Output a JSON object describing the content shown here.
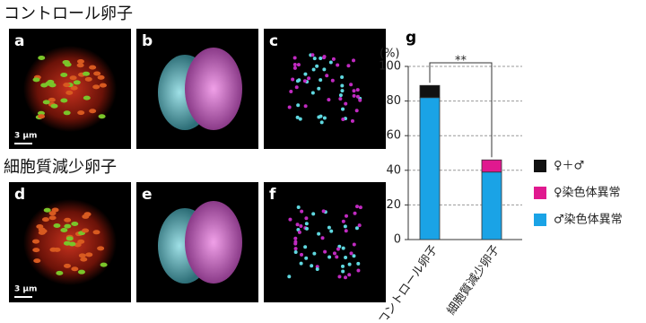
{
  "header": {
    "row1": "コントロール卵子",
    "row2": "細胞質減少卵子"
  },
  "panels": [
    {
      "label": "a",
      "scale": "3 μm"
    },
    {
      "label": "b"
    },
    {
      "label": "c"
    },
    {
      "label": "d",
      "scale": "3 μm"
    },
    {
      "label": "e"
    },
    {
      "label": "f"
    }
  ],
  "chart_data": {
    "type": "bar",
    "stacked": true,
    "panel_label": "g",
    "y_label": "(%)",
    "significance": "**",
    "categories": [
      "コントロール卵子",
      "細胞質減少卵子"
    ],
    "series": [
      {
        "name": "♂染色体異常",
        "color": "#1aa3e6",
        "values": [
          82,
          39
        ]
      },
      {
        "name": "♀染色体異常",
        "color": "#e0198f",
        "values": [
          0,
          7
        ]
      },
      {
        "name": "♀＋♂",
        "color": "#111111",
        "values": [
          7,
          0
        ]
      }
    ],
    "ylim": [
      0,
      100
    ],
    "yticks": [
      0,
      20,
      40,
      60,
      80,
      100
    ],
    "grid": true
  }
}
